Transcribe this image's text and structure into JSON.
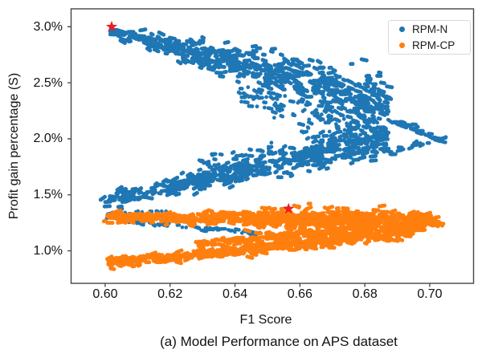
{
  "figure": {
    "caption": "(a) Model Performance on APS dataset"
  },
  "chart_data": {
    "type": "scatter",
    "title": "",
    "xlabel": "F1 Score",
    "ylabel": "Profit gain percentage (S)",
    "xlim": [
      0.5895,
      0.7135
    ],
    "ylim": [
      0.71,
      3.16
    ],
    "grid": false,
    "x_ticks": [
      {
        "v": 0.6,
        "label": "0.60"
      },
      {
        "v": 0.62,
        "label": "0.62"
      },
      {
        "v": 0.64,
        "label": "0.64"
      },
      {
        "v": 0.66,
        "label": "0.66"
      },
      {
        "v": 0.68,
        "label": "0.68"
      },
      {
        "v": 0.7,
        "label": "0.70"
      }
    ],
    "y_ticks": [
      {
        "v": 3.0,
        "label": "3.0%"
      },
      {
        "v": 2.5,
        "label": "2.5%"
      },
      {
        "v": 2.0,
        "label": "2.0%"
      },
      {
        "v": 1.5,
        "label": "1.5%"
      },
      {
        "v": 1.0,
        "label": "1.0%"
      }
    ],
    "legend": {
      "position": "top-right",
      "entries": [
        {
          "label": "RPM-N",
          "color": "#1f77b4"
        },
        {
          "label": "RPM-CP",
          "color": "#ff7f0e"
        }
      ]
    },
    "series": [
      {
        "name": "RPM-N",
        "color": "#1f77b4",
        "bands": [
          {
            "from": [
              0.6015,
              2.96
            ],
            "to": [
              0.687,
              2.33
            ],
            "width": [
              0.085,
              0.4
            ],
            "n": 500,
            "clump": [
              2,
              4
            ],
            "r": 2.5,
            "bias": 0.85
          },
          {
            "from": [
              0.641,
              2.4
            ],
            "to": [
              0.6865,
              2.03
            ],
            "width": [
              0.12,
              0.3
            ],
            "n": 150,
            "clump": [
              1,
              3
            ],
            "r": 2.4,
            "bias": 0.9
          },
          {
            "from": [
              0.5985,
              1.445
            ],
            "to": [
              0.6865,
              1.975
            ],
            "width": [
              0.1,
              0.2
            ],
            "n": 400,
            "clump": [
              2,
              4
            ],
            "r": 2.5,
            "bias": 0.9
          },
          {
            "from": [
              0.628,
              1.78
            ],
            "to": [
              0.6835,
              2.06
            ],
            "width": [
              0.14,
              0.16
            ],
            "n": 90,
            "clump": [
              1,
              3
            ],
            "r": 2.4,
            "bias": 1.0
          },
          {
            "from": [
              0.6635,
              2.52
            ],
            "to": [
              0.7055,
              1.95
            ],
            "width": [
              0.045,
              0.05
            ],
            "n": 46,
            "clump": [
              2,
              4
            ],
            "r": 2.4,
            "bias": 1.0
          },
          {
            "from": [
              0.687,
              1.88
            ],
            "to": [
              0.7045,
              2.0
            ],
            "width": [
              0.05,
              0.05
            ],
            "n": 20,
            "clump": [
              2,
              3
            ],
            "r": 2.4,
            "bias": 1.0
          },
          {
            "from": [
              0.599,
              1.285
            ],
            "to": [
              0.648,
              1.155
            ],
            "width": [
              0.028,
              0.03
            ],
            "n": 60,
            "clump": [
              1,
              3
            ],
            "r": 2.3,
            "bias": 1.0
          },
          {
            "from": [
              0.6,
              1.33
            ],
            "to": [
              0.619,
              1.36
            ],
            "width": [
              0.045,
              0.05
            ],
            "n": 18,
            "clump": [
              1,
              2
            ],
            "r": 2.3,
            "bias": 1.0
          }
        ]
      },
      {
        "name": "RPM-CP",
        "color": "#ff7f0e",
        "bands": [
          {
            "from": [
              0.5995,
              1.3
            ],
            "to": [
              0.7,
              1.272
            ],
            "width": [
              0.075,
              0.11
            ],
            "n": 520,
            "clump": [
              2,
              4
            ],
            "r": 2.5,
            "bias": 1.0
          },
          {
            "from": [
              0.643,
              1.285
            ],
            "to": [
              0.688,
              1.255
            ],
            "width": [
              0.17,
              0.19
            ],
            "n": 230,
            "clump": [
              2,
              4
            ],
            "r": 2.5,
            "bias": 1.0
          },
          {
            "from": [
              0.694,
              1.285
            ],
            "to": [
              0.7035,
              1.245
            ],
            "width": [
              0.06,
              0.07
            ],
            "n": 40,
            "clump": [
              2,
              4
            ],
            "r": 2.4,
            "bias": 1.0
          },
          {
            "from": [
              0.6265,
              1.06
            ],
            "to": [
              0.6975,
              1.225
            ],
            "width": [
              0.045,
              0.085
            ],
            "n": 220,
            "clump": [
              2,
              4
            ],
            "r": 2.5,
            "bias": 0.95
          },
          {
            "from": [
              0.6005,
              0.885
            ],
            "to": [
              0.693,
              1.16
            ],
            "width": [
              0.065,
              0.08
            ],
            "n": 430,
            "clump": [
              2,
              4
            ],
            "r": 2.5,
            "bias": 1.0
          }
        ]
      }
    ],
    "highlight_markers": [
      {
        "shape": "star",
        "color": "#ed1c24",
        "x": 0.602,
        "y": 3.0
      },
      {
        "shape": "star",
        "color": "#ed1c24",
        "x": 0.6565,
        "y": 1.375
      }
    ]
  }
}
